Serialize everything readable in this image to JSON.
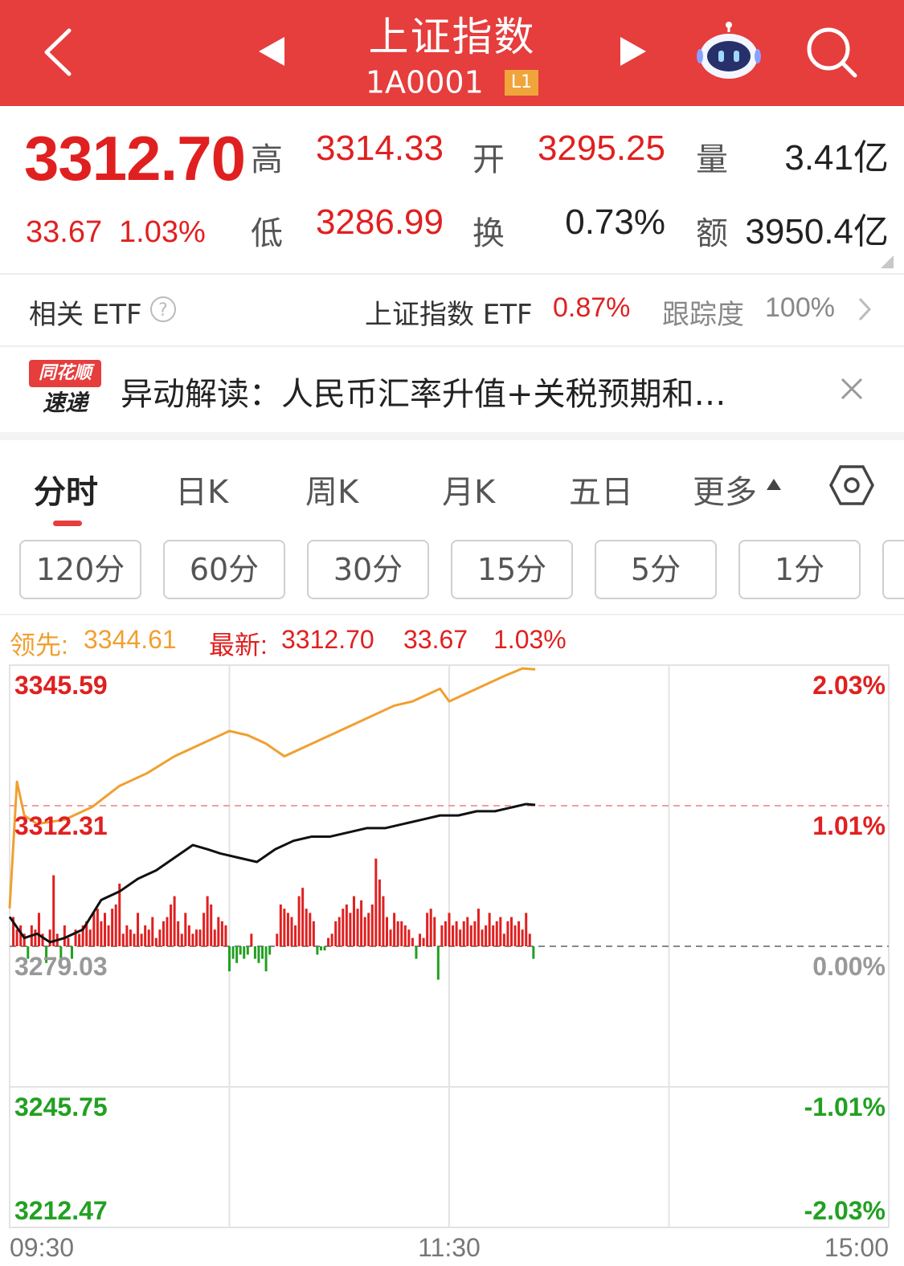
{
  "header": {
    "title": "上证指数",
    "code": "1A0001",
    "level_badge": "L1",
    "icons": [
      "back-chevron-icon",
      "prev-triangle-icon",
      "next-triangle-icon",
      "robot-assistant-icon",
      "search-icon"
    ]
  },
  "quote": {
    "price": "3312.70",
    "change": "33.67",
    "change_pct": "1.03%",
    "high_label": "高",
    "high": "3314.33",
    "open_label": "开",
    "open": "3295.25",
    "volume_label": "量",
    "volume": "3.41亿",
    "low_label": "低",
    "low": "3286.99",
    "turnover_label": "换",
    "turnover": "0.73%",
    "amount_label": "额",
    "amount": "3950.4亿"
  },
  "etf": {
    "label": "相关 ETF",
    "name": "上证指数 ETF",
    "pct": "0.87%",
    "tracking_label": "跟踪度",
    "tracking_value": "100%"
  },
  "news": {
    "logo_top": "同花顺",
    "logo_bottom": "速递",
    "text": "异动解读：人民币汇率升值+关税预期和…"
  },
  "tabs": [
    "分时",
    "日K",
    "周K",
    "月K",
    "五日",
    "更多"
  ],
  "periods": [
    "120分",
    "60分",
    "30分",
    "15分",
    "5分",
    "1分"
  ],
  "info": {
    "lead_label": "领先:",
    "lead_value": "3344.61",
    "latest_label": "最新:",
    "latest_value": "3312.70",
    "latest_change": "33.67",
    "latest_pct": "1.03%"
  },
  "colors": {
    "header_red": "#e63d3d",
    "up_red": "#e02020",
    "down_green": "#22a022",
    "lead_orange": "#f0a030",
    "price_black": "#111111"
  },
  "chart_data": {
    "type": "line",
    "y_left_ticks": [
      "3345.59",
      "3312.31",
      "3279.03",
      "3245.75",
      "3212.47"
    ],
    "y_right_ticks": [
      "2.03%",
      "1.01%",
      "0.00%",
      "-1.01%",
      "-2.03%"
    ],
    "x_ticks": [
      "09:30",
      "11:30",
      "15:00"
    ],
    "ylim": [
      3212.47,
      3345.59
    ],
    "prev_close": 3279.03,
    "series": [
      {
        "color": "#f0a030",
        "points": [
          [
            0,
            3288
          ],
          [
            4,
            3318
          ],
          [
            8,
            3310
          ],
          [
            15,
            3308
          ],
          [
            30,
            3309
          ],
          [
            45,
            3312
          ],
          [
            60,
            3317
          ],
          [
            75,
            3320
          ],
          [
            90,
            3324
          ],
          [
            105,
            3327
          ],
          [
            120,
            3330
          ],
          [
            130,
            3329
          ],
          [
            140,
            3327
          ],
          [
            150,
            3324
          ],
          [
            160,
            3326
          ],
          [
            170,
            3328
          ],
          [
            180,
            3330
          ],
          [
            190,
            3332
          ],
          [
            200,
            3334
          ],
          [
            210,
            3336
          ],
          [
            220,
            3337
          ],
          [
            230,
            3339
          ],
          [
            235,
            3340
          ],
          [
            240,
            3337
          ],
          [
            245,
            3338
          ],
          [
            250,
            3339
          ],
          [
            260,
            3341
          ],
          [
            270,
            3343
          ],
          [
            280,
            3344.8
          ],
          [
            287,
            3344.6
          ]
        ]
      },
      {
        "color": "#111111",
        "points": [
          [
            0,
            3286
          ],
          [
            8,
            3281
          ],
          [
            15,
            3282
          ],
          [
            22,
            3280
          ],
          [
            30,
            3281
          ],
          [
            40,
            3283
          ],
          [
            50,
            3290
          ],
          [
            60,
            3292
          ],
          [
            70,
            3295
          ],
          [
            80,
            3297
          ],
          [
            90,
            3300
          ],
          [
            100,
            3303
          ],
          [
            108,
            3302
          ],
          [
            115,
            3301
          ],
          [
            125,
            3300
          ],
          [
            135,
            3299
          ],
          [
            145,
            3302
          ],
          [
            155,
            3304
          ],
          [
            165,
            3305
          ],
          [
            175,
            3305
          ],
          [
            185,
            3306
          ],
          [
            195,
            3307
          ],
          [
            205,
            3307
          ],
          [
            215,
            3308
          ],
          [
            225,
            3309
          ],
          [
            235,
            3310
          ],
          [
            245,
            3310
          ],
          [
            255,
            3311
          ],
          [
            265,
            3311
          ],
          [
            275,
            3312
          ],
          [
            282,
            3312.7
          ],
          [
            287,
            3312.5
          ]
        ]
      }
    ],
    "volume_bars": [
      [
        2,
        7
      ],
      [
        4,
        4
      ],
      [
        6,
        5
      ],
      [
        8,
        3
      ],
      [
        10,
        -3
      ],
      [
        12,
        5
      ],
      [
        14,
        4
      ],
      [
        16,
        8
      ],
      [
        18,
        3
      ],
      [
        20,
        -4
      ],
      [
        22,
        4
      ],
      [
        24,
        17
      ],
      [
        26,
        3
      ],
      [
        28,
        -3
      ],
      [
        30,
        5
      ],
      [
        32,
        2
      ],
      [
        34,
        -3
      ],
      [
        36,
        4
      ],
      [
        38,
        3
      ],
      [
        40,
        5
      ],
      [
        42,
        6
      ],
      [
        44,
        4
      ],
      [
        46,
        8
      ],
      [
        48,
        9
      ],
      [
        50,
        6
      ],
      [
        52,
        8
      ],
      [
        54,
        5
      ],
      [
        56,
        9
      ],
      [
        58,
        10
      ],
      [
        60,
        15
      ],
      [
        62,
        3
      ],
      [
        64,
        5
      ],
      [
        66,
        4
      ],
      [
        68,
        3
      ],
      [
        70,
        8
      ],
      [
        72,
        3
      ],
      [
        74,
        5
      ],
      [
        76,
        4
      ],
      [
        78,
        7
      ],
      [
        80,
        2
      ],
      [
        82,
        4
      ],
      [
        84,
        6
      ],
      [
        86,
        7
      ],
      [
        88,
        10
      ],
      [
        90,
        12
      ],
      [
        92,
        6
      ],
      [
        94,
        3
      ],
      [
        96,
        8
      ],
      [
        98,
        5
      ],
      [
        100,
        3
      ],
      [
        102,
        4
      ],
      [
        104,
        4
      ],
      [
        106,
        8
      ],
      [
        108,
        12
      ],
      [
        110,
        10
      ],
      [
        112,
        4
      ],
      [
        114,
        7
      ],
      [
        116,
        6
      ],
      [
        118,
        5
      ],
      [
        120,
        -6
      ],
      [
        122,
        -3
      ],
      [
        124,
        -4
      ],
      [
        126,
        -2
      ],
      [
        128,
        -3
      ],
      [
        130,
        -2
      ],
      [
        132,
        3
      ],
      [
        134,
        -3
      ],
      [
        136,
        -4
      ],
      [
        138,
        -3
      ],
      [
        140,
        -6
      ],
      [
        142,
        -2
      ],
      [
        146,
        3
      ],
      [
        148,
        10
      ],
      [
        150,
        9
      ],
      [
        152,
        8
      ],
      [
        154,
        7
      ],
      [
        156,
        5
      ],
      [
        158,
        12
      ],
      [
        160,
        14
      ],
      [
        162,
        9
      ],
      [
        164,
        8
      ],
      [
        166,
        6
      ],
      [
        168,
        -2
      ],
      [
        170,
        -1
      ],
      [
        172,
        -1
      ],
      [
        174,
        2
      ],
      [
        176,
        3
      ],
      [
        178,
        6
      ],
      [
        180,
        7
      ],
      [
        182,
        9
      ],
      [
        184,
        10
      ],
      [
        186,
        8
      ],
      [
        188,
        12
      ],
      [
        190,
        9
      ],
      [
        192,
        11
      ],
      [
        194,
        7
      ],
      [
        196,
        8
      ],
      [
        198,
        10
      ],
      [
        200,
        21
      ],
      [
        202,
        16
      ],
      [
        204,
        12
      ],
      [
        206,
        7
      ],
      [
        208,
        4
      ],
      [
        210,
        8
      ],
      [
        212,
        6
      ],
      [
        214,
        6
      ],
      [
        216,
        5
      ],
      [
        218,
        4
      ],
      [
        220,
        2
      ],
      [
        222,
        -3
      ],
      [
        224,
        3
      ],
      [
        226,
        2
      ],
      [
        228,
        8
      ],
      [
        230,
        9
      ],
      [
        232,
        7
      ],
      [
        234,
        -8
      ],
      [
        236,
        5
      ],
      [
        238,
        6
      ],
      [
        240,
        8
      ],
      [
        242,
        5
      ],
      [
        244,
        6
      ],
      [
        246,
        4
      ],
      [
        248,
        6
      ],
      [
        250,
        7
      ],
      [
        252,
        5
      ],
      [
        254,
        6
      ],
      [
        256,
        9
      ],
      [
        258,
        4
      ],
      [
        260,
        5
      ],
      [
        262,
        8
      ],
      [
        264,
        5
      ],
      [
        266,
        6
      ],
      [
        268,
        7
      ],
      [
        270,
        3
      ],
      [
        272,
        6
      ],
      [
        274,
        7
      ],
      [
        276,
        5
      ],
      [
        278,
        6
      ],
      [
        280,
        4
      ],
      [
        282,
        8
      ],
      [
        284,
        3
      ],
      [
        286,
        -3
      ]
    ]
  }
}
